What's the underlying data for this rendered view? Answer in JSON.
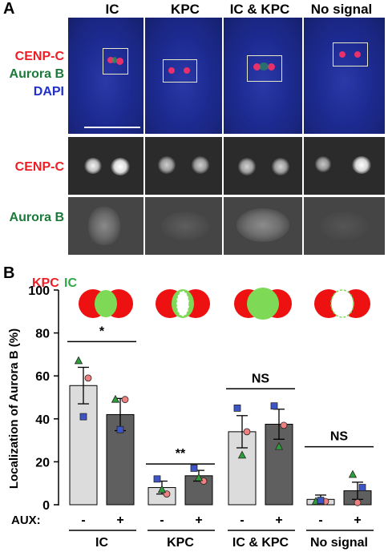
{
  "panel_a": {
    "letter": "A",
    "columns": [
      "IC",
      "KPC",
      "IC & KPC",
      "No signal"
    ],
    "row_labels": {
      "merge": [
        "CENP-C",
        "Aurora B",
        "DAPI"
      ],
      "cenpc": "CENP-C",
      "aurorab": "Aurora B"
    },
    "colors": {
      "cenpc": "#ee1c24",
      "aurorab": "#1b7a3a",
      "dapi": "#1f2fc8"
    }
  },
  "panel_b": {
    "letter": "B",
    "legend_kpc": "KPC",
    "legend_ic": "IC",
    "aux_label": "AUX:",
    "aux_minus": "-",
    "aux_plus": "+"
  },
  "chart_data": {
    "type": "bar",
    "ylabel": "Localization of Aurora B (%)",
    "ylim": [
      0,
      100
    ],
    "yticks": [
      0,
      20,
      40,
      60,
      80,
      100
    ],
    "groups": [
      "IC",
      "KPC",
      "IC & KPC",
      "No signal"
    ],
    "series": [
      {
        "name": "-",
        "color": "#dcdcdc",
        "values": [
          55.5,
          8,
          34,
          2.5
        ],
        "errors": [
          8.5,
          3,
          7.5,
          2
        ]
      },
      {
        "name": "+",
        "color": "#5f5f5f",
        "values": [
          42,
          13.5,
          37.5,
          6.5
        ],
        "errors": [
          7.5,
          2.5,
          7,
          4
        ]
      }
    ],
    "points": [
      {
        "group": 0,
        "aux": "-",
        "pts": [
          {
            "s": "tri",
            "v": 67
          },
          {
            "s": "circ",
            "v": 59
          },
          {
            "s": "sq",
            "v": 41
          }
        ]
      },
      {
        "group": 0,
        "aux": "+",
        "pts": [
          {
            "s": "tri",
            "v": 49
          },
          {
            "s": "circ",
            "v": 49
          },
          {
            "s": "sq",
            "v": 35
          }
        ]
      },
      {
        "group": 1,
        "aux": "-",
        "pts": [
          {
            "s": "sq",
            "v": 12
          },
          {
            "s": "circ",
            "v": 5
          },
          {
            "s": "tri",
            "v": 7
          }
        ]
      },
      {
        "group": 1,
        "aux": "+",
        "pts": [
          {
            "s": "sq",
            "v": 17
          },
          {
            "s": "circ",
            "v": 11
          },
          {
            "s": "tri",
            "v": 12.5
          }
        ]
      },
      {
        "group": 2,
        "aux": "-",
        "pts": [
          {
            "s": "sq",
            "v": 45
          },
          {
            "s": "circ",
            "v": 34
          },
          {
            "s": "tri",
            "v": 23
          }
        ]
      },
      {
        "group": 2,
        "aux": "+",
        "pts": [
          {
            "s": "sq",
            "v": 46
          },
          {
            "s": "circ",
            "v": 37
          },
          {
            "s": "tri",
            "v": 27
          }
        ]
      },
      {
        "group": 3,
        "aux": "-",
        "pts": [
          {
            "s": "tri",
            "v": 1.5
          },
          {
            "s": "circ",
            "v": 1.5
          },
          {
            "s": "sq",
            "v": 2
          }
        ]
      },
      {
        "group": 3,
        "aux": "+",
        "pts": [
          {
            "s": "tri",
            "v": 14
          },
          {
            "s": "sq",
            "v": 8
          },
          {
            "s": "circ",
            "v": 1
          }
        ]
      }
    ],
    "marker_colors": {
      "tri": "#2e9e3a",
      "circ": "#f08080",
      "sq": "#3e55c8"
    },
    "significance": [
      {
        "group": 0,
        "label": "*",
        "y": 76
      },
      {
        "group": 1,
        "label": "**",
        "y": 19
      },
      {
        "group": 2,
        "label": "NS",
        "y": 54
      },
      {
        "group": 3,
        "label": "NS",
        "y": 27
      }
    ]
  }
}
